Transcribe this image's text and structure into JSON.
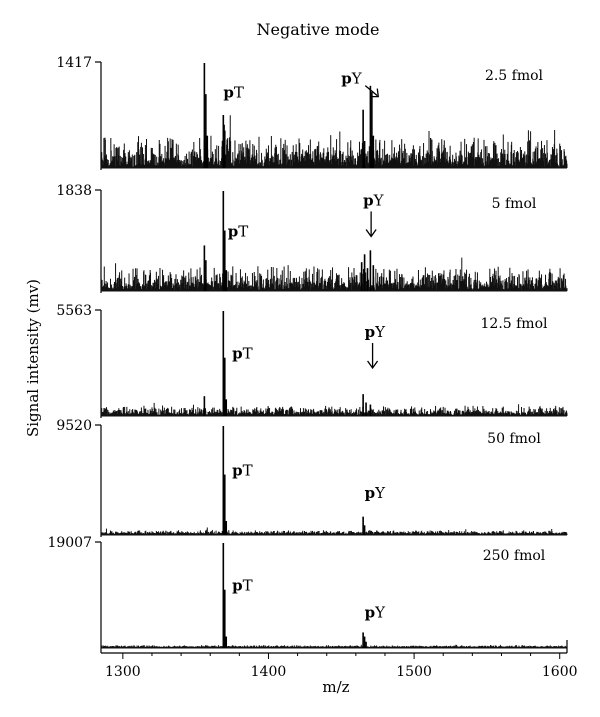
{
  "chart_data": {
    "type": "line",
    "title": "Negative mode",
    "xlabel": "m/z",
    "ylabel": "Signal intensity (mv)",
    "xlim": [
      1285,
      1605
    ],
    "xticks": [
      1300,
      1400,
      1500,
      1600
    ],
    "grid": false,
    "panels": [
      {
        "label": "2.5 fmol",
        "ymax": 1417,
        "noise": 0.1,
        "peaks": [
          {
            "x": 1356,
            "y": 1.0
          },
          {
            "x": 1357,
            "y": 0.7
          },
          {
            "x": 1358,
            "y": 0.3
          },
          {
            "x": 1369,
            "y": 0.5
          },
          {
            "x": 1370,
            "y": 0.35
          },
          {
            "x": 1465,
            "y": 0.55
          },
          {
            "x": 1466,
            "y": 0.25
          },
          {
            "x": 1470,
            "y": 0.78
          },
          {
            "x": 1471,
            "y": 0.72
          },
          {
            "x": 1472,
            "y": 0.3
          }
        ],
        "annotations": [
          {
            "prefix": "p",
            "suffix": "T",
            "x": 1369,
            "y": 0.67
          },
          {
            "prefix": "p",
            "suffix": "Y",
            "x": 1450,
            "y": 0.8,
            "arrow": "diagonal"
          }
        ]
      },
      {
        "label": "5 fmol",
        "ymax": 1838,
        "noise": 0.08,
        "peaks": [
          {
            "x": 1356,
            "y": 0.45
          },
          {
            "x": 1357,
            "y": 0.3
          },
          {
            "x": 1369,
            "y": 1.0
          },
          {
            "x": 1370,
            "y": 0.6
          },
          {
            "x": 1371,
            "y": 0.2
          },
          {
            "x": 1464,
            "y": 0.28
          },
          {
            "x": 1466,
            "y": 0.36
          },
          {
            "x": 1468,
            "y": 0.22
          },
          {
            "x": 1470,
            "y": 0.4
          },
          {
            "x": 1472,
            "y": 0.25
          }
        ],
        "annotations": [
          {
            "prefix": "p",
            "suffix": "T",
            "x": 1372,
            "y": 0.55
          },
          {
            "prefix": "p",
            "suffix": "Y",
            "x": 1465,
            "y": 0.85,
            "arrow": "down"
          }
        ]
      },
      {
        "label": "12.5 fmol",
        "ymax": 5563,
        "noise": 0.03,
        "peaks": [
          {
            "x": 1356,
            "y": 0.18
          },
          {
            "x": 1369,
            "y": 1.0
          },
          {
            "x": 1370,
            "y": 0.55
          },
          {
            "x": 1371,
            "y": 0.15
          },
          {
            "x": 1465,
            "y": 0.2
          },
          {
            "x": 1467,
            "y": 0.12
          },
          {
            "x": 1470,
            "y": 0.1
          }
        ],
        "annotations": [
          {
            "prefix": "p",
            "suffix": "T",
            "x": 1375,
            "y": 0.55
          },
          {
            "prefix": "p",
            "suffix": "Y",
            "x": 1466,
            "y": 0.75,
            "arrow": "down"
          }
        ]
      },
      {
        "label": "50 fmol",
        "ymax": 9520,
        "noise": 0.012,
        "peaks": [
          {
            "x": 1369,
            "y": 1.0
          },
          {
            "x": 1370,
            "y": 0.55
          },
          {
            "x": 1371,
            "y": 0.12
          },
          {
            "x": 1465,
            "y": 0.16
          },
          {
            "x": 1466,
            "y": 0.08
          }
        ],
        "annotations": [
          {
            "prefix": "p",
            "suffix": "T",
            "x": 1375,
            "y": 0.55
          },
          {
            "prefix": "p",
            "suffix": "Y",
            "x": 1466,
            "y": 0.35
          }
        ]
      },
      {
        "label": "250 fmol",
        "ymax": 19007,
        "noise": 0.006,
        "peaks": [
          {
            "x": 1369,
            "y": 1.0
          },
          {
            "x": 1370,
            "y": 0.55
          },
          {
            "x": 1371,
            "y": 0.1
          },
          {
            "x": 1465,
            "y": 0.14
          },
          {
            "x": 1466,
            "y": 0.1
          },
          {
            "x": 1467,
            "y": 0.05
          }
        ],
        "annotations": [
          {
            "prefix": "p",
            "suffix": "T",
            "x": 1375,
            "y": 0.55
          },
          {
            "prefix": "p",
            "suffix": "Y",
            "x": 1466,
            "y": 0.3
          }
        ]
      }
    ]
  }
}
